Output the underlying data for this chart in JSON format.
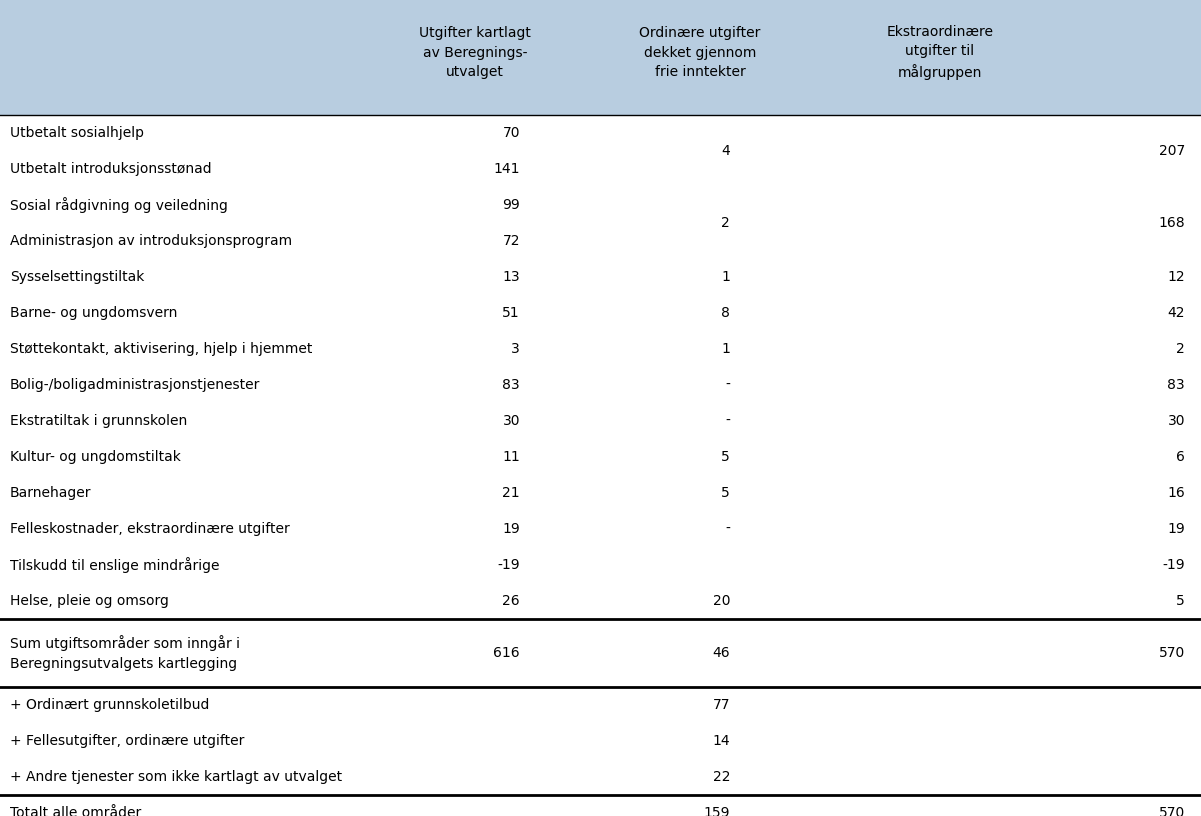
{
  "header_bg_color": "#b8cde0",
  "col_headers": [
    "Utgifter kartlagt\nav Beregnings-\nutvalget",
    "Ordinære utgifter\ndekket gjennom\nfrie inntekter",
    "Ekstraordinære\nutgifter til\nmålgruppen"
  ],
  "rows": [
    {
      "label": "Utbetalt sosialhjelp",
      "col1": "70",
      "col2": "4",
      "col3": "207",
      "col2_span": 2,
      "col3_span": 2
    },
    {
      "label": "Utbetalt introduksjonsstønad",
      "col1": "141",
      "col2": "",
      "col3": ""
    },
    {
      "label": "Sosial rådgivning og veiledning",
      "col1": "99",
      "col2": "2",
      "col3": "168",
      "col2_span": 2,
      "col3_span": 2
    },
    {
      "label": "Administrasjon av introduksjonsprogram",
      "col1": "72",
      "col2": "",
      "col3": ""
    },
    {
      "label": "Sysselsettingstiltak",
      "col1": "13",
      "col2": "1",
      "col3": "12"
    },
    {
      "label": "Barne- og ungdomsvern",
      "col1": "51",
      "col2": "8",
      "col3": "42"
    },
    {
      "label": "Støttekontakt, aktivisering, hjelp i hjemmet",
      "col1": "3",
      "col2": "1",
      "col3": "2"
    },
    {
      "label": "Bolig-/boligadministrasjonstjenester",
      "col1": "83",
      "col2": "-",
      "col3": "83"
    },
    {
      "label": "Ekstratiltak i grunnskolen",
      "col1": "30",
      "col2": "-",
      "col3": "30"
    },
    {
      "label": "Kultur- og ungdomstiltak",
      "col1": "11",
      "col2": "5",
      "col3": "6"
    },
    {
      "label": "Barnehager",
      "col1": "21",
      "col2": "5",
      "col3": "16"
    },
    {
      "label": "Felleskostnader, ekstraordinære utgifter",
      "col1": "19",
      "col2": "-",
      "col3": "19"
    },
    {
      "label": "Tilskudd til enslige mindrårige",
      "col1": "-19",
      "col2": "",
      "col3": "-19"
    },
    {
      "label": "Helse, pleie og omsorg",
      "col1": "26",
      "col2": "20",
      "col3": "5"
    }
  ],
  "sum_row": {
    "label": "Sum utgiftsområder som inngår i\nBeregningsutvalgets kartlegging",
    "col1": "616",
    "col2": "46",
    "col3": "570"
  },
  "extra_rows": [
    {
      "label": "+ Ordinært grunnskoletilbud",
      "col1": "",
      "col2": "77",
      "col3": ""
    },
    {
      "label": "+ Fellesutgifter, ordinære utgifter",
      "col1": "",
      "col2": "14",
      "col3": ""
    },
    {
      "label": "+ Andre tjenester som ikke kartlagt av utvalget",
      "col1": "",
      "col2": "22",
      "col3": ""
    }
  ],
  "total_row": {
    "label": "Totalt alle områder",
    "col1": "",
    "col2": "159",
    "col3": "570"
  },
  "fig_width": 12.01,
  "fig_height": 8.16,
  "dpi": 100
}
